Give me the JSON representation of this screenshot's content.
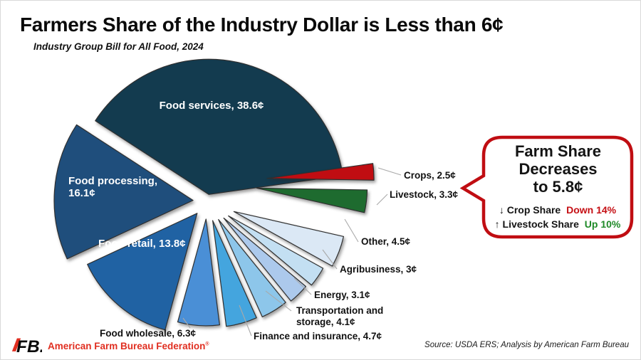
{
  "title": "Farmers Share of the Industry Dollar is Less than 6¢",
  "subtitle": "Industry Group Bill for All Food, 2024",
  "chart_data": {
    "type": "pie",
    "title": "Industry Group Bill for All Food, 2024",
    "value_unit": "¢",
    "total": 100,
    "slices": [
      {
        "name": "Food services",
        "value": 38.6,
        "label": "Food services, 38.6¢",
        "color": "#133B4F"
      },
      {
        "name": "Crops",
        "value": 2.5,
        "label": "Crops, 2.5¢",
        "color": "#C00D12"
      },
      {
        "name": "Livestock",
        "value": 3.3,
        "label": "Livestock, 3.3¢",
        "color": "#1E6B2F"
      },
      {
        "name": "Other",
        "value": 4.5,
        "label": "Other, 4.5¢",
        "color": "#DBE8F5"
      },
      {
        "name": "Agribusiness",
        "value": 3,
        "label": "Agribusiness, 3¢",
        "color": "#C3DFF2"
      },
      {
        "name": "Energy",
        "value": 3.1,
        "label": "Energy, 3.1¢",
        "color": "#ACC9EC"
      },
      {
        "name": "Transportation and storage",
        "value": 4.1,
        "label": "Transportation and storage, 4.1¢",
        "color": "#8DC6EA"
      },
      {
        "name": "Finance and insurance",
        "value": 4.7,
        "label": "Finance and insurance, 4.7¢",
        "color": "#44A5DE"
      },
      {
        "name": "Food wholesale",
        "value": 6.3,
        "label": "Food wholesale, 6.3¢",
        "color": "#4A8FD6"
      },
      {
        "name": "Food retail",
        "value": 13.8,
        "label": "Food retail, 13.8¢",
        "color": "#2062A3"
      },
      {
        "name": "Food processing",
        "value": 16.1,
        "label": "Food processing, 16.1¢",
        "color": "#1F4E7C"
      }
    ]
  },
  "callout": {
    "line1": "Farm Share",
    "line2": "Decreases",
    "line3": "to 5.8¢",
    "crop_prefix": "↓ Crop Share",
    "crop_change": "Down 14%",
    "livestock_prefix": "↑ Livestock Share",
    "livestock_change": "Up 10%",
    "border_color": "#C00D12",
    "crop_color": "#C50F14",
    "livestock_color": "#1F8A28"
  },
  "footer": {
    "brand": "American Farm Bureau Federation",
    "brand_mark": "®",
    "source": "Source: USDA ERS; Analysis by American Farm Bureau"
  }
}
